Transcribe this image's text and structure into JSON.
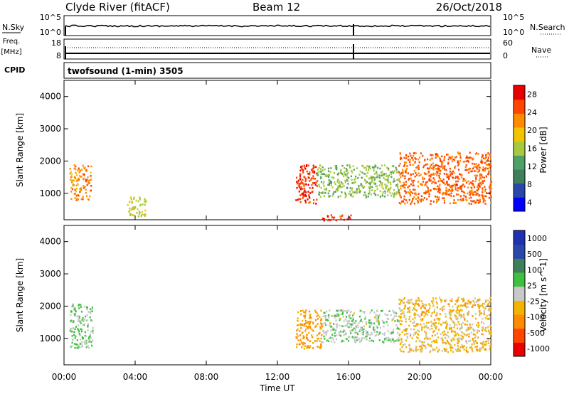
{
  "header": {
    "title": "Clyde River (fitACF)",
    "beam": "Beam 12",
    "date": "26/Oct/2018"
  },
  "panels": {
    "nsky": {
      "left_label": "N.Sky",
      "left_ticks": [
        "10^5",
        "10^0"
      ],
      "right_ticks": [
        "10^5",
        "10^0"
      ],
      "right_label": "N.Search"
    },
    "freq": {
      "left_label_line1": "Freq.",
      "left_label_line2": "[MHz]",
      "left_ticks": [
        "18",
        "8"
      ],
      "right_ticks": [
        "60",
        "0"
      ],
      "right_label": "Nave"
    },
    "cpid": {
      "label": "CPID",
      "text": "twofsound (1-min) 3505"
    }
  },
  "colors": {
    "power_scale": [
      "#0000ff",
      "#2847a8",
      "#3f7f5a",
      "#4ea068",
      "#a8c840",
      "#f2c400",
      "#ff8c00",
      "#ff4500",
      "#e80000"
    ],
    "velocity_scale": [
      "#e80000",
      "#ff4500",
      "#ff8c00",
      "#f2b400",
      "#c8c8c8",
      "#40c040",
      "#3f7f5a",
      "#2847a8",
      "#2030b0"
    ]
  },
  "chart_data": [
    {
      "type": "heatmap",
      "title": "Power",
      "ylabel": "Slant Range [km]",
      "xlabel": "Time UT",
      "xticks": [
        "00:00",
        "04:00",
        "08:00",
        "12:00",
        "16:00",
        "20:00",
        "00:00"
      ],
      "yticks": [
        "1000",
        "2000",
        "3000",
        "4000"
      ],
      "xlim_hours": [
        0,
        24
      ],
      "ylim_km": [
        180,
        4500
      ],
      "colorbar": {
        "label": "Power [dB]",
        "ticks": [
          "28",
          "24",
          "20",
          "16",
          "12",
          "8",
          "4"
        ],
        "range": [
          0,
          30
        ]
      },
      "features": [
        {
          "t0": 0.3,
          "t1": 1.5,
          "r0": 800,
          "r1": 1900,
          "value": 22
        },
        {
          "t0": 3.5,
          "t1": 4.6,
          "r0": 300,
          "r1": 900,
          "value": 16
        },
        {
          "t0": 13.0,
          "t1": 14.2,
          "r0": 700,
          "r1": 1900,
          "value": 26
        },
        {
          "t0": 14.2,
          "t1": 18.8,
          "r0": 900,
          "r1": 1900,
          "value": 14
        },
        {
          "t0": 18.8,
          "t1": 24.0,
          "r0": 700,
          "r1": 2300,
          "value": 24
        },
        {
          "t0": 14.5,
          "t1": 16.2,
          "r0": 180,
          "r1": 350,
          "value": 26
        }
      ]
    },
    {
      "type": "heatmap",
      "title": "Velocity",
      "ylabel": "Slant Range [km]",
      "xlabel": "Time UT",
      "xticks": [
        "00:00",
        "04:00",
        "08:00",
        "12:00",
        "16:00",
        "20:00",
        "00:00"
      ],
      "yticks": [
        "1000",
        "2000",
        "3000",
        "4000"
      ],
      "xlim_hours": [
        0,
        24
      ],
      "ylim_km": [
        180,
        4500
      ],
      "colorbar": {
        "label": "Velocity [m s^-1]",
        "ticks": [
          "1000",
          "500",
          "100",
          "25",
          "-25",
          "-100",
          "-500",
          "-1000"
        ],
        "range": [
          -1000,
          1000
        ]
      },
      "features": [
        {
          "t0": 0.3,
          "t1": 1.6,
          "r0": 700,
          "r1": 2100,
          "value": 120
        },
        {
          "t0": 13.0,
          "t1": 14.5,
          "r0": 700,
          "r1": 1900,
          "value": -350
        },
        {
          "t0": 14.5,
          "t1": 18.8,
          "r0": 900,
          "r1": 1900,
          "value": 60
        },
        {
          "t0": 18.8,
          "t1": 24.0,
          "r0": 600,
          "r1": 2300,
          "value": -200
        }
      ]
    }
  ]
}
